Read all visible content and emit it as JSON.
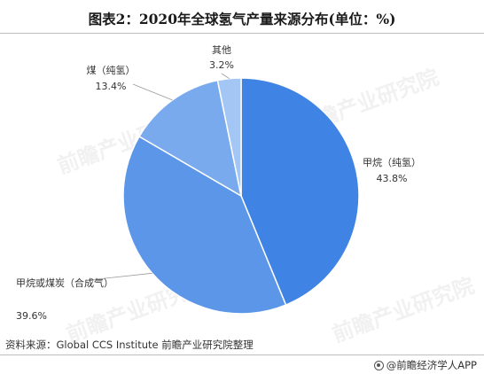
{
  "title": "图表2：2020年全球氢气产量来源分布(单位：%)",
  "source": "资料来源：Global CCS Institute 前瞻产业研究院整理",
  "brand": "@前瞻经济学人APP",
  "watermark": "前瞻产业研究院",
  "chart_data": {
    "type": "pie",
    "title": "图表2：2020年全球氢气产量来源分布(单位：%)",
    "slices": [
      {
        "label": "甲烷（纯氢）",
        "value": 43.8,
        "value_text": "43.8%",
        "color": "#3f84e5"
      },
      {
        "label": "甲烷或煤炭（合成气）",
        "value": 39.6,
        "value_text": "39.6%",
        "color": "#5c96e9"
      },
      {
        "label": "煤（纯氢）",
        "value": 13.4,
        "value_text": "13.4%",
        "color": "#7aaaee"
      },
      {
        "label": "其他",
        "value": 3.2,
        "value_text": "3.2%",
        "color": "#a4c6f4"
      }
    ]
  }
}
